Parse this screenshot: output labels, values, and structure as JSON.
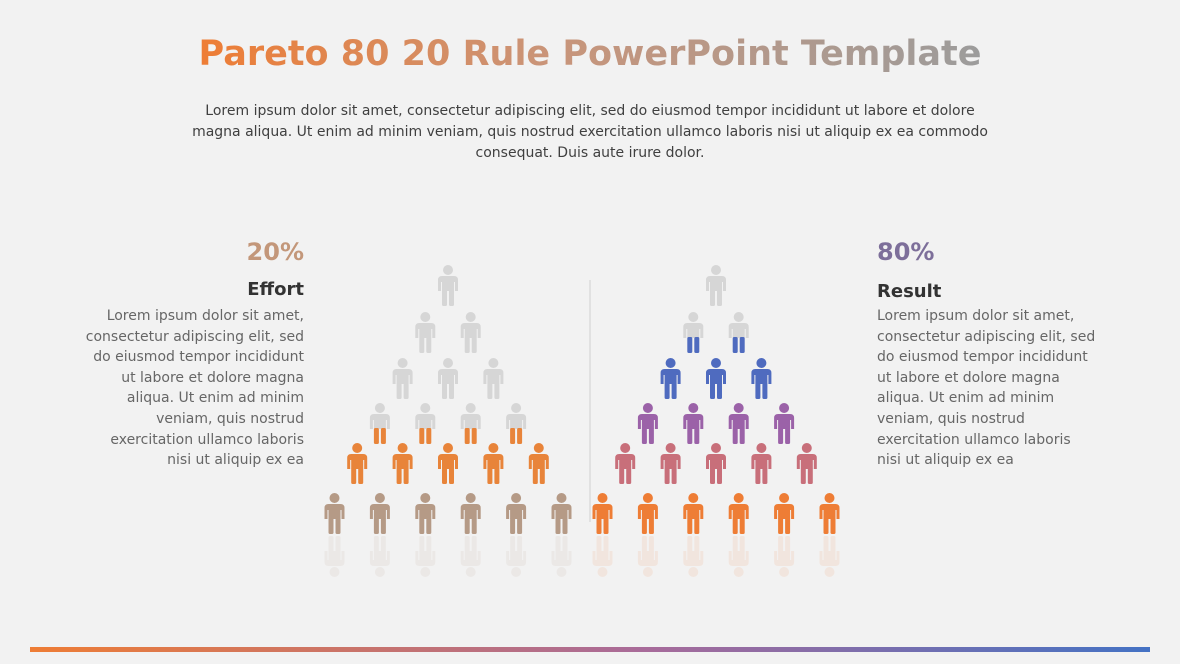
{
  "header": {
    "title": "Pareto 80 20 Rule PowerPoint Template",
    "subtitle": "Lorem ipsum dolor sit amet, consectetur adipiscing elit, sed do eiusmod tempor incididunt ut labore et dolore magna aliqua. Ut enim ad minim veniam, quis nostrud exercitation ullamco laboris nisi ut aliquip ex ea commodo consequat. Duis aute irure dolor."
  },
  "left": {
    "percent": "20%",
    "heading": "Effort",
    "text": "Lorem ipsum dolor sit amet, consectetur adipiscing elit, sed do eiusmod tempor incididunt ut labore et dolore magna aliqua. Ut enim ad minim veniam, quis nostrud exercitation ullamco laboris nisi ut aliquip ex ea"
  },
  "right": {
    "percent": "80%",
    "heading": "Result",
    "text": "Lorem ipsum dolor sit amet, consectetur adipiscing elit, sed do eiusmod tempor incididunt ut labore et dolore magna aliqua. Ut enim ad minim veniam, quis nostrud exercitation ullamco laboris nisi ut aliquip ex ea"
  }
}
